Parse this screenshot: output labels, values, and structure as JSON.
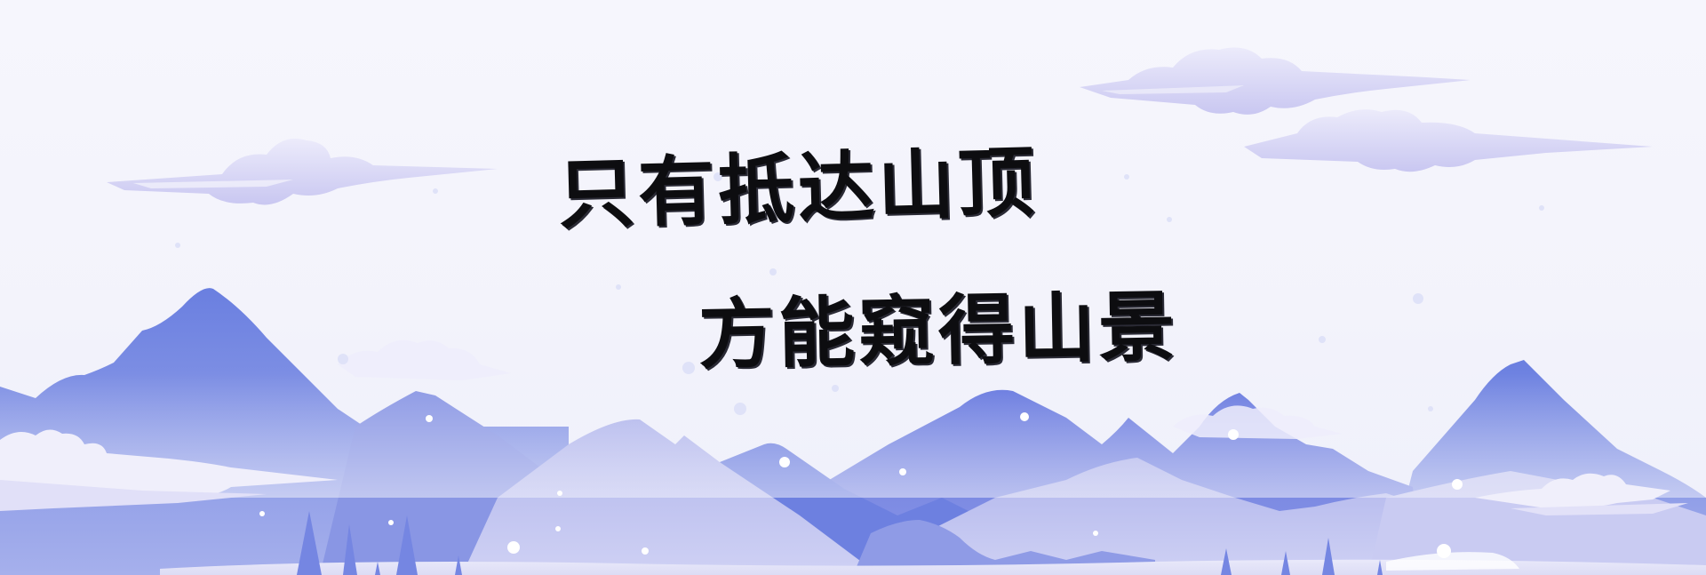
{
  "banner": {
    "headline": {
      "line1": "只有抵达山顶",
      "line2": "方能窥得山景"
    },
    "palette": {
      "sky": "#f5f5fc",
      "mountain_deep": "#6b7ee0",
      "mountain_mid": "#9ea7e6",
      "mountain_light": "#c5c7ef",
      "cloud": "#d8d6f5",
      "snow": "#ffffff",
      "text": "#0d0d10"
    },
    "icons": [
      "cloud-icon",
      "mountain-icon",
      "pine-tree-icon",
      "snowflake-icon"
    ]
  }
}
